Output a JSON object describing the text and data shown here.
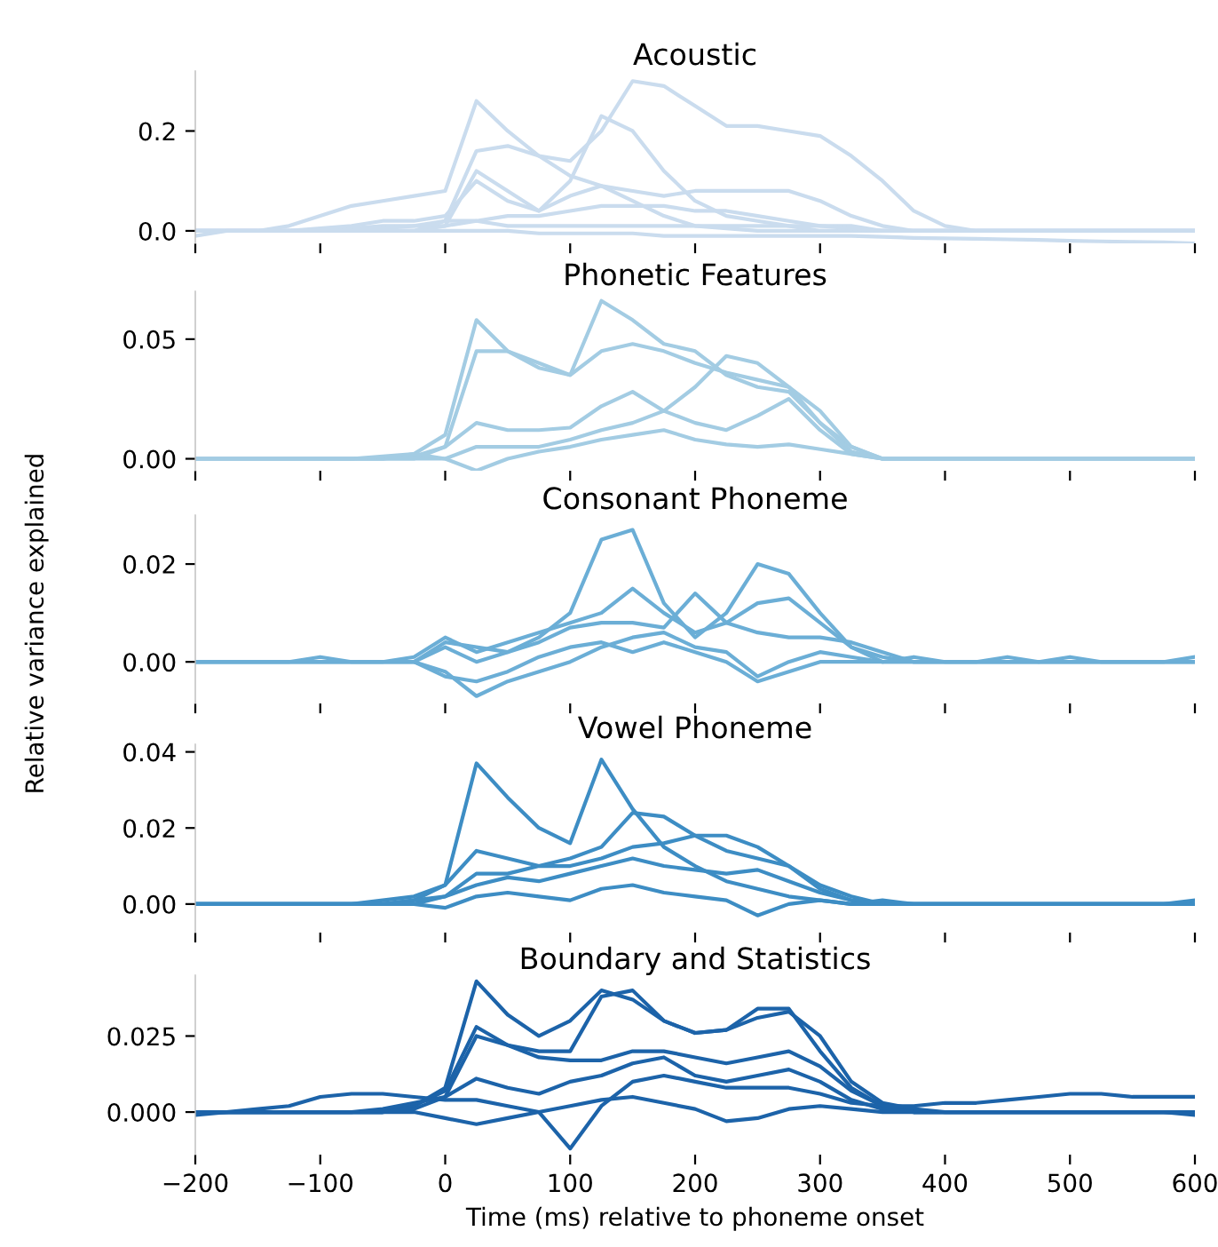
{
  "chart_data": [
    {
      "type": "line",
      "title": "Acoustic",
      "tick_labels": "y",
      "xlim": [
        -200,
        600
      ],
      "ylim": [
        -0.025,
        0.32
      ],
      "xticks": [
        {
          "value": -200,
          "label": null
        },
        {
          "value": -100,
          "label": null
        },
        {
          "value": 0,
          "label": null
        },
        {
          "value": 100,
          "label": null
        },
        {
          "value": 200,
          "label": null
        },
        {
          "value": 300,
          "label": null
        },
        {
          "value": 400,
          "label": null
        },
        {
          "value": 500,
          "label": null
        },
        {
          "value": 600,
          "label": null
        }
      ],
      "yticks": [
        {
          "value": 0,
          "label": "0.0"
        },
        {
          "value": 0.2,
          "label": "0.2"
        }
      ],
      "x": [
        -200,
        -175,
        -150,
        -125,
        -100,
        -75,
        -50,
        -25,
        0,
        25,
        50,
        75,
        100,
        125,
        150,
        175,
        200,
        225,
        250,
        275,
        300,
        325,
        350,
        375,
        400,
        425,
        450,
        475,
        500,
        525,
        550,
        575,
        600
      ],
      "series": [
        {
          "color": "#cadcee",
          "values": [
            0,
            0,
            0,
            0.01,
            0.03,
            0.05,
            0.06,
            0.07,
            0.08,
            0.26,
            0.2,
            0.15,
            0.11,
            0.09,
            0.06,
            0.03,
            0.01,
            0.005,
            0,
            0,
            0,
            0,
            0,
            0,
            0,
            0,
            0,
            0,
            0,
            0,
            0,
            0,
            0
          ]
        },
        {
          "color": "#cadcee",
          "values": [
            0,
            0,
            0,
            0,
            0,
            0.005,
            0.01,
            0.01,
            0.02,
            0.16,
            0.17,
            0.15,
            0.14,
            0.2,
            0.3,
            0.29,
            0.25,
            0.21,
            0.21,
            0.2,
            0.19,
            0.15,
            0.1,
            0.04,
            0.01,
            0,
            0,
            0,
            0,
            0,
            0,
            0,
            0
          ]
        },
        {
          "color": "#cadcee",
          "values": [
            0,
            0,
            0,
            0,
            0,
            0,
            0,
            0,
            0.01,
            0.12,
            0.08,
            0.04,
            0.1,
            0.23,
            0.2,
            0.12,
            0.06,
            0.03,
            0.02,
            0.01,
            0,
            0,
            0,
            0,
            0,
            0,
            0,
            0,
            0,
            0,
            0,
            0,
            0
          ]
        },
        {
          "color": "#cadcee",
          "values": [
            0,
            0,
            0,
            0,
            0.005,
            0.01,
            0.02,
            0.02,
            0.03,
            0.1,
            0.06,
            0.04,
            0.07,
            0.09,
            0.08,
            0.07,
            0.08,
            0.08,
            0.08,
            0.08,
            0.06,
            0.03,
            0.01,
            0,
            0,
            0,
            0,
            0,
            0,
            0,
            0,
            0,
            0
          ]
        },
        {
          "color": "#cadcee",
          "values": [
            0,
            0,
            0,
            0,
            0,
            0,
            0.005,
            0.01,
            0.01,
            0.02,
            0.03,
            0.03,
            0.04,
            0.05,
            0.05,
            0.05,
            0.04,
            0.04,
            0.03,
            0.02,
            0.01,
            0.01,
            0,
            0,
            0,
            0,
            0,
            0,
            0,
            0,
            0,
            0,
            0
          ]
        },
        {
          "color": "#cadcee",
          "values": [
            0,
            0,
            0,
            0,
            0,
            0,
            0,
            0,
            0,
            0,
            0,
            -0.005,
            -0.005,
            -0.005,
            -0.005,
            -0.01,
            -0.01,
            -0.01,
            -0.01,
            -0.01,
            -0.01,
            -0.01,
            -0.012,
            -0.014,
            -0.015,
            -0.016,
            -0.017,
            -0.018,
            -0.02,
            -0.021,
            -0.022,
            -0.023,
            -0.025
          ]
        },
        {
          "color": "#cadcee",
          "values": [
            -0.01,
            0,
            0,
            0,
            0,
            0,
            0,
            0,
            0.02,
            0.02,
            0.01,
            0.01,
            0.01,
            0.01,
            0.01,
            0.01,
            0.01,
            0.01,
            0.01,
            0.01,
            0.01,
            0.005,
            0,
            0,
            0,
            0,
            0,
            0,
            0,
            0,
            0,
            0,
            0
          ]
        }
      ]
    },
    {
      "type": "line",
      "title": "Phonetic Features",
      "tick_labels": "y",
      "xlim": [
        -200,
        600
      ],
      "ylim": [
        -0.005,
        0.07
      ],
      "xticks": [
        {
          "value": -200,
          "label": null
        },
        {
          "value": -100,
          "label": null
        },
        {
          "value": 0,
          "label": null
        },
        {
          "value": 100,
          "label": null
        },
        {
          "value": 200,
          "label": null
        },
        {
          "value": 300,
          "label": null
        },
        {
          "value": 400,
          "label": null
        },
        {
          "value": 500,
          "label": null
        },
        {
          "value": 600,
          "label": null
        }
      ],
      "yticks": [
        {
          "value": 0,
          "label": "0.00"
        },
        {
          "value": 0.05,
          "label": "0.05"
        }
      ],
      "x": [
        -200,
        -175,
        -150,
        -125,
        -100,
        -75,
        -50,
        -25,
        0,
        25,
        50,
        75,
        100,
        125,
        150,
        175,
        200,
        225,
        250,
        275,
        300,
        325,
        350,
        375,
        400,
        425,
        450,
        475,
        500,
        525,
        550,
        575,
        600
      ],
      "series": [
        {
          "color": "#a3cce3",
          "values": [
            0,
            0,
            0,
            0,
            0,
            0,
            0,
            0.002,
            0.01,
            0.058,
            0.045,
            0.038,
            0.035,
            0.066,
            0.058,
            0.048,
            0.045,
            0.035,
            0.03,
            0.028,
            0.015,
            0.005,
            0,
            0,
            0,
            0,
            0,
            0,
            0,
            0,
            0,
            0,
            0
          ]
        },
        {
          "color": "#a3cce3",
          "values": [
            0,
            0,
            0,
            0,
            0,
            0,
            0,
            0.001,
            0.005,
            0.045,
            0.045,
            0.04,
            0.035,
            0.045,
            0.048,
            0.045,
            0.04,
            0.036,
            0.033,
            0.03,
            0.02,
            0.005,
            0,
            0,
            0,
            0,
            0,
            0,
            0,
            0,
            0,
            0,
            0
          ]
        },
        {
          "color": "#a3cce3",
          "values": [
            0,
            0,
            0,
            0,
            0,
            0,
            0,
            0,
            0,
            0.005,
            0.005,
            0.005,
            0.008,
            0.012,
            0.015,
            0.02,
            0.03,
            0.043,
            0.04,
            0.03,
            0.015,
            0.003,
            0,
            0,
            0,
            0,
            0,
            0,
            0,
            0,
            0,
            0,
            0
          ]
        },
        {
          "color": "#a3cce3",
          "values": [
            0,
            0,
            0,
            0,
            0,
            0,
            0,
            0,
            0.005,
            0.015,
            0.012,
            0.012,
            0.013,
            0.022,
            0.028,
            0.02,
            0.015,
            0.012,
            0.018,
            0.025,
            0.012,
            0.002,
            0,
            0,
            0,
            0,
            0,
            0,
            0,
            0,
            0,
            0,
            0
          ]
        },
        {
          "color": "#a3cce3",
          "values": [
            0,
            0,
            0,
            0,
            0,
            0,
            0.001,
            0.002,
            0,
            -0.005,
            0,
            0.003,
            0.005,
            0.008,
            0.01,
            0.012,
            0.008,
            0.006,
            0.005,
            0.006,
            0.004,
            0.002,
            0,
            0,
            0,
            0,
            0,
            0,
            0,
            0,
            0,
            0,
            0
          ]
        }
      ]
    },
    {
      "type": "line",
      "title": "Consonant Phoneme",
      "ylabel": "Relative variance explained",
      "tick_labels": "y",
      "xlim": [
        -200,
        600
      ],
      "ylim": [
        -0.0085,
        0.03
      ],
      "xticks": [
        {
          "value": -200,
          "label": null
        },
        {
          "value": -100,
          "label": null
        },
        {
          "value": 0,
          "label": null
        },
        {
          "value": 100,
          "label": null
        },
        {
          "value": 200,
          "label": null
        },
        {
          "value": 300,
          "label": null
        },
        {
          "value": 400,
          "label": null
        },
        {
          "value": 500,
          "label": null
        },
        {
          "value": 600,
          "label": null
        }
      ],
      "yticks": [
        {
          "value": 0,
          "label": "0.00"
        },
        {
          "value": 0.02,
          "label": "0.02"
        }
      ],
      "x": [
        -200,
        -175,
        -150,
        -125,
        -100,
        -75,
        -50,
        -25,
        0,
        25,
        50,
        75,
        100,
        125,
        150,
        175,
        200,
        225,
        250,
        275,
        300,
        325,
        350,
        375,
        400,
        425,
        450,
        475,
        500,
        525,
        550,
        575,
        600
      ],
      "series": [
        {
          "color": "#6baed6",
          "values": [
            0,
            0,
            0,
            0,
            0,
            0,
            0,
            0,
            0.003,
            0,
            0.002,
            0.005,
            0.01,
            0.025,
            0.027,
            0.012,
            0.005,
            0.01,
            0.02,
            0.018,
            0.01,
            0.003,
            0.001,
            0,
            0,
            0,
            0,
            0,
            0,
            0,
            0,
            0,
            0
          ]
        },
        {
          "color": "#6baed6",
          "values": [
            0,
            0,
            0,
            0,
            0,
            0,
            0,
            0.001,
            0.005,
            0.002,
            0.004,
            0.006,
            0.008,
            0.01,
            0.015,
            0.01,
            0.006,
            0.008,
            0.012,
            0.013,
            0.008,
            0.003,
            0,
            0,
            0,
            0,
            0,
            0,
            0,
            0,
            0,
            0,
            0
          ]
        },
        {
          "color": "#6baed6",
          "values": [
            0,
            0,
            0,
            0,
            0.001,
            0,
            0,
            0,
            -0.002,
            -0.007,
            -0.004,
            -0.002,
            0,
            0.003,
            0.005,
            0.006,
            0.003,
            0.002,
            -0.003,
            0,
            0.002,
            0.001,
            0,
            0.001,
            0,
            0,
            0,
            0,
            0.001,
            0,
            0,
            0,
            0
          ]
        },
        {
          "color": "#6baed6",
          "values": [
            0,
            0,
            0,
            0,
            0,
            0,
            0,
            0,
            0.004,
            0.003,
            0.002,
            0.004,
            0.007,
            0.008,
            0.008,
            0.007,
            0.014,
            0.008,
            0.006,
            0.005,
            0.005,
            0.004,
            0.002,
            0,
            0,
            0,
            0.001,
            0,
            0,
            0,
            0,
            0,
            0.001
          ]
        },
        {
          "color": "#6baed6",
          "values": [
            0,
            0,
            0,
            0,
            0,
            0,
            0,
            0,
            -0.003,
            -0.004,
            -0.002,
            0.001,
            0.003,
            0.004,
            0.002,
            0.004,
            0.002,
            0,
            -0.004,
            -0.002,
            0,
            0,
            0,
            0,
            0,
            0,
            0,
            0,
            0,
            0,
            0,
            0,
            0
          ]
        }
      ]
    },
    {
      "type": "line",
      "title": "Vowel Phoneme",
      "tick_labels": "y",
      "xlim": [
        -200,
        600
      ],
      "ylim": [
        -0.0075,
        0.042
      ],
      "xticks": [
        {
          "value": -200,
          "label": null
        },
        {
          "value": -100,
          "label": null
        },
        {
          "value": 0,
          "label": null
        },
        {
          "value": 100,
          "label": null
        },
        {
          "value": 200,
          "label": null
        },
        {
          "value": 300,
          "label": null
        },
        {
          "value": 400,
          "label": null
        },
        {
          "value": 500,
          "label": null
        },
        {
          "value": 600,
          "label": null
        }
      ],
      "yticks": [
        {
          "value": 0,
          "label": "0.00"
        },
        {
          "value": 0.02,
          "label": "0.02"
        },
        {
          "value": 0.04,
          "label": "0.04"
        }
      ],
      "x": [
        -200,
        -175,
        -150,
        -125,
        -100,
        -75,
        -50,
        -25,
        0,
        25,
        50,
        75,
        100,
        125,
        150,
        175,
        200,
        225,
        250,
        275,
        300,
        325,
        350,
        375,
        400,
        425,
        450,
        475,
        500,
        525,
        550,
        575,
        600
      ],
      "series": [
        {
          "color": "#3d8dc4",
          "values": [
            0,
            0,
            0,
            0,
            0,
            0,
            0,
            0.001,
            0.005,
            0.037,
            0.028,
            0.02,
            0.016,
            0.038,
            0.025,
            0.015,
            0.01,
            0.006,
            0.004,
            0.002,
            0.001,
            0,
            0,
            0,
            0,
            0,
            0,
            0,
            0,
            0,
            0,
            0,
            0
          ]
        },
        {
          "color": "#3d8dc4",
          "values": [
            0,
            0,
            0,
            0,
            0,
            0,
            0,
            0,
            0.002,
            0.008,
            0.008,
            0.01,
            0.012,
            0.015,
            0.024,
            0.023,
            0.018,
            0.014,
            0.012,
            0.01,
            0.005,
            0.002,
            0,
            0,
            0,
            0,
            0,
            0,
            0,
            0,
            0,
            0,
            0
          ]
        },
        {
          "color": "#3d8dc4",
          "values": [
            0,
            0,
            0,
            0,
            0,
            0,
            0.001,
            0.002,
            0.005,
            0.014,
            0.012,
            0.01,
            0.01,
            0.012,
            0.015,
            0.016,
            0.018,
            0.018,
            0.015,
            0.01,
            0.004,
            0.001,
            0,
            0,
            0,
            0,
            0,
            0,
            0,
            0,
            0,
            0,
            0
          ]
        },
        {
          "color": "#3d8dc4",
          "values": [
            0,
            0,
            0,
            0,
            0,
            0,
            0,
            0.001,
            0.002,
            0.005,
            0.007,
            0.006,
            0.008,
            0.01,
            0.012,
            0.01,
            0.009,
            0.008,
            0.009,
            0.006,
            0.003,
            0.001,
            0,
            0,
            0,
            0,
            0,
            0,
            0,
            0,
            0,
            0,
            0
          ]
        },
        {
          "color": "#3d8dc4",
          "values": [
            0,
            0,
            0,
            0,
            0,
            0,
            0,
            0,
            -0.001,
            0.002,
            0.003,
            0.002,
            0.001,
            0.004,
            0.005,
            0.003,
            0.002,
            0.001,
            -0.003,
            0,
            0.001,
            0,
            0.001,
            0,
            0,
            0,
            0,
            0,
            0,
            0,
            0,
            0,
            0.001
          ]
        }
      ]
    },
    {
      "type": "line",
      "title": "Boundary and Statistics",
      "xlabel": "Time (ms) relative to phoneme onset",
      "xlim": [
        -200,
        600
      ],
      "ylim": [
        -0.014,
        0.045
      ],
      "xticks": [
        {
          "value": -200,
          "label": "−200"
        },
        {
          "value": -100,
          "label": "−100"
        },
        0,
        100,
        200,
        300,
        400,
        500,
        600
      ],
      "yticks": [
        {
          "value": 0,
          "label": "0.000"
        },
        {
          "value": 0.025,
          "label": "0.025"
        }
      ],
      "x": [
        -200,
        -175,
        -150,
        -125,
        -100,
        -75,
        -50,
        -25,
        0,
        25,
        50,
        75,
        100,
        125,
        150,
        175,
        200,
        225,
        250,
        275,
        300,
        325,
        350,
        375,
        400,
        425,
        450,
        475,
        500,
        525,
        550,
        575,
        600
      ],
      "series": [
        {
          "color": "#1c63a9",
          "values": [
            0,
            0,
            0,
            0,
            0,
            0,
            0,
            0.002,
            0.008,
            0.043,
            0.032,
            0.025,
            0.03,
            0.04,
            0.037,
            0.03,
            0.026,
            0.027,
            0.031,
            0.033,
            0.025,
            0.01,
            0.003,
            0.001,
            0,
            0,
            0,
            0,
            0,
            0,
            0,
            0,
            0
          ]
        },
        {
          "color": "#1c63a9",
          "values": [
            0,
            0,
            0,
            0,
            0,
            0,
            0,
            0.002,
            0.007,
            0.028,
            0.022,
            0.02,
            0.02,
            0.038,
            0.04,
            0.03,
            0.026,
            0.027,
            0.034,
            0.034,
            0.02,
            0.008,
            0.002,
            0,
            0,
            0,
            0,
            0,
            0,
            0,
            0,
            0,
            0
          ]
        },
        {
          "color": "#1c63a9",
          "values": [
            0,
            0,
            0,
            0,
            0,
            0,
            0,
            0.001,
            0.005,
            0.025,
            0.022,
            0.018,
            0.017,
            0.017,
            0.02,
            0.02,
            0.018,
            0.016,
            0.018,
            0.02,
            0.015,
            0.007,
            0.002,
            0,
            0,
            0,
            0,
            0,
            0,
            0,
            0,
            0,
            0
          ]
        },
        {
          "color": "#1c63a9",
          "values": [
            0,
            0,
            0.001,
            0.002,
            0.005,
            0.006,
            0.006,
            0.005,
            0.004,
            0.004,
            0.002,
            0,
            -0.012,
            0.002,
            0.01,
            0.012,
            0.01,
            0.008,
            0.008,
            0.008,
            0.006,
            0.003,
            0.002,
            0.002,
            0.003,
            0.003,
            0.004,
            0.005,
            0.006,
            0.006,
            0.005,
            0.005,
            0.005
          ]
        },
        {
          "color": "#1c63a9",
          "values": [
            0,
            0,
            0,
            0,
            0,
            0,
            0.001,
            0.003,
            0.005,
            0.011,
            0.008,
            0.006,
            0.01,
            0.012,
            0.016,
            0.018,
            0.012,
            0.01,
            0.012,
            0.014,
            0.01,
            0.004,
            0.001,
            0,
            0,
            0,
            0,
            0,
            0,
            0,
            0,
            0,
            0
          ]
        },
        {
          "color": "#1c63a9",
          "values": [
            -0.001,
            0,
            0,
            0,
            0,
            0,
            0,
            0,
            -0.002,
            -0.004,
            -0.002,
            0,
            0.002,
            0.004,
            0.005,
            0.003,
            0.001,
            -0.003,
            -0.002,
            0.001,
            0.002,
            0.001,
            0,
            0,
            0,
            0,
            0,
            0,
            0,
            0,
            0,
            0,
            -0.001
          ]
        }
      ]
    }
  ]
}
